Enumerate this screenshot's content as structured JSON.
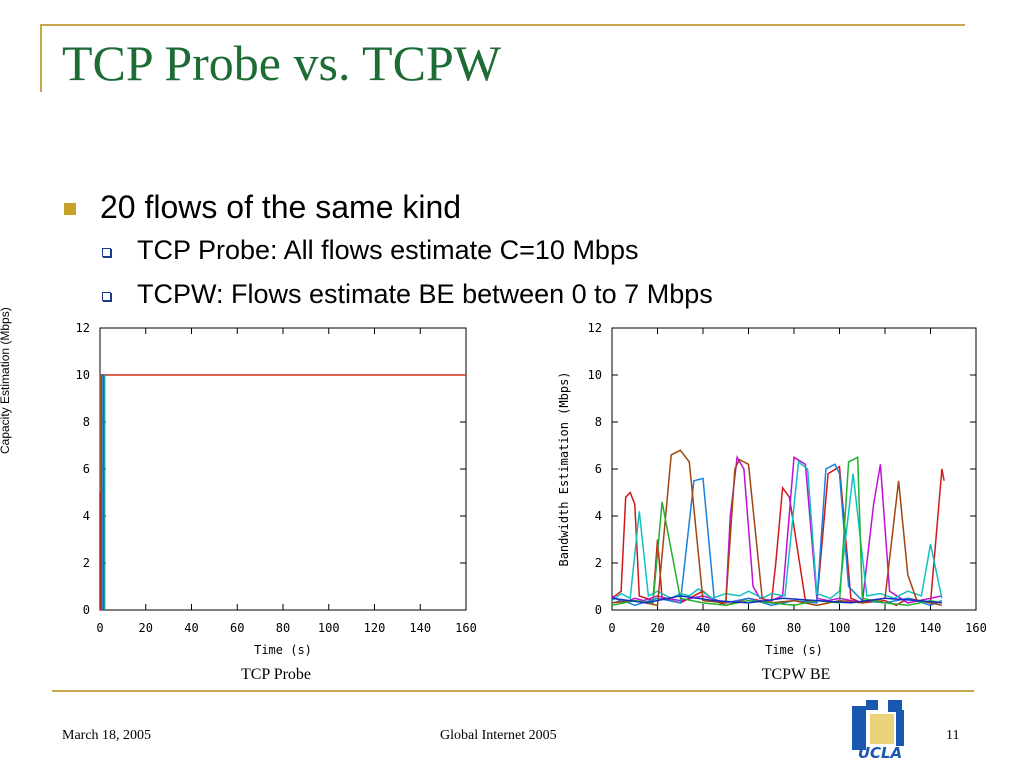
{
  "slide": {
    "title": "TCP Probe vs. TCPW",
    "bullet_main": "20 flows of the same kind",
    "sub_bullets": [
      "TCP Probe: All flows estimate C=10 Mbps",
      "TCPW: Flows estimate BE between 0 to 7 Mbps"
    ],
    "footer_date": "March 18, 2005",
    "footer_center": "Global Internet 2005",
    "page_number": "11",
    "logo_text": "UCLA",
    "colors": {
      "title": "#1d6b35",
      "rule": "#c8a54a",
      "bullet": "#c6a228"
    }
  },
  "chart_data": [
    {
      "type": "line",
      "caption": "TCP Probe",
      "xlabel": "Time (s)",
      "ylabel": "Capacity Estimation (Mbps)",
      "xlim": [
        0,
        160
      ],
      "ylim": [
        0,
        12
      ],
      "xticks": [
        0,
        20,
        40,
        60,
        80,
        100,
        120,
        140,
        160
      ],
      "yticks": [
        0,
        2,
        4,
        6,
        8,
        10,
        12
      ],
      "grid": false,
      "legend": "none",
      "series": [
        {
          "color": "#d03010",
          "x": [
            0,
            0.4,
            0.4,
            160
          ],
          "y": [
            0,
            0,
            10,
            10
          ]
        },
        {
          "color": "#1070d0",
          "x": [
            0.9,
            0.9,
            1.3
          ],
          "y": [
            0,
            10,
            10
          ]
        },
        {
          "color": "#c010c0",
          "x": [
            1.6,
            1.6,
            2.0
          ],
          "y": [
            0,
            10,
            10
          ]
        },
        {
          "color": "#10a0a0",
          "x": [
            2.0,
            2.0
          ],
          "y": [
            0,
            10
          ]
        },
        {
          "color": "#a05010",
          "x": [
            0.2,
            0.2
          ],
          "y": [
            5,
            10
          ]
        }
      ]
    },
    {
      "type": "line",
      "caption": "TCPW BE",
      "xlabel": "Time (s)",
      "ylabel": "Bandwidth Estimation (Mbps)",
      "xlim": [
        0,
        160
      ],
      "ylim": [
        0,
        12
      ],
      "xticks": [
        0,
        20,
        40,
        60,
        80,
        100,
        120,
        140,
        160
      ],
      "yticks": [
        0,
        2,
        4,
        6,
        8,
        10,
        12
      ],
      "grid": false,
      "legend": "none",
      "series": [
        {
          "color": "#d01818",
          "x": [
            0,
            4,
            6,
            8,
            10,
            12,
            18,
            20,
            22,
            30,
            40,
            45,
            50,
            60,
            70,
            72,
            75,
            78,
            85,
            90,
            95,
            100,
            105,
            110,
            120,
            125,
            130,
            140,
            145,
            146
          ],
          "y": [
            0.5,
            0.8,
            4.8,
            5.0,
            4.5,
            0.6,
            0.4,
            3.0,
            0.5,
            0.3,
            0.8,
            0.4,
            0.2,
            0.5,
            0.3,
            2.0,
            5.2,
            4.8,
            0.4,
            0.3,
            5.8,
            6.1,
            0.5,
            0.3,
            0.4,
            0.2,
            0.5,
            0.3,
            6.0,
            5.5
          ]
        },
        {
          "color": "#c010d8",
          "x": [
            0,
            5,
            10,
            14,
            20,
            24,
            30,
            40,
            50,
            52,
            55,
            58,
            62,
            65,
            70,
            75,
            80,
            85,
            90,
            95,
            100,
            110,
            115,
            118,
            122,
            130,
            140,
            145
          ],
          "y": [
            0.6,
            0.3,
            0.5,
            0.4,
            0.6,
            0.5,
            0.4,
            0.6,
            0.3,
            4.0,
            6.5,
            6.0,
            1.0,
            0.5,
            0.4,
            0.6,
            6.5,
            6.2,
            0.5,
            0.4,
            0.5,
            0.3,
            4.5,
            6.2,
            0.8,
            0.3,
            0.5,
            0.6
          ]
        },
        {
          "color": "#1880e0",
          "x": [
            0,
            5,
            10,
            20,
            30,
            36,
            40,
            45,
            50,
            60,
            70,
            80,
            90,
            94,
            98,
            100,
            104,
            110,
            120,
            130,
            140,
            145
          ],
          "y": [
            0.3,
            0.4,
            0.2,
            0.5,
            0.3,
            5.5,
            5.6,
            0.4,
            0.3,
            0.5,
            0.2,
            0.4,
            0.3,
            6.0,
            6.2,
            5.8,
            1.0,
            0.4,
            0.3,
            0.5,
            0.2,
            0.4
          ]
        },
        {
          "color": "#10c0c0",
          "x": [
            0,
            4,
            8,
            12,
            16,
            20,
            26,
            30,
            34,
            38,
            44,
            50,
            56,
            60,
            66,
            70,
            76,
            82,
            86,
            90,
            96,
            100,
            106,
            112,
            118,
            124,
            130,
            136,
            140,
            145
          ],
          "y": [
            0.4,
            0.7,
            0.5,
            4.2,
            0.6,
            0.8,
            0.5,
            0.7,
            0.6,
            0.9,
            0.5,
            0.7,
            0.6,
            0.8,
            0.5,
            0.7,
            0.6,
            6.3,
            6.0,
            0.7,
            0.5,
            0.8,
            5.8,
            0.6,
            0.7,
            0.5,
            0.8,
            0.6,
            2.8,
            0.5
          ]
        },
        {
          "color": "#a04410",
          "x": [
            0,
            10,
            20,
            26,
            30,
            34,
            40,
            50,
            54,
            56,
            60,
            66,
            70,
            80,
            90,
            100,
            110,
            120,
            126,
            130,
            134,
            140,
            145
          ],
          "y": [
            0.3,
            0.4,
            0.2,
            6.6,
            6.8,
            6.3,
            0.4,
            0.3,
            6.0,
            6.4,
            6.2,
            0.5,
            0.3,
            0.4,
            0.2,
            0.4,
            0.3,
            0.5,
            5.5,
            1.5,
            0.4,
            0.3,
            0.2
          ]
        },
        {
          "color": "#20b030",
          "x": [
            0,
            10,
            18,
            22,
            30,
            40,
            50,
            60,
            70,
            80,
            90,
            100,
            104,
            108,
            110,
            120,
            130,
            140,
            145
          ],
          "y": [
            0.2,
            0.4,
            0.3,
            4.6,
            0.5,
            0.3,
            0.2,
            0.4,
            0.3,
            0.2,
            0.4,
            0.3,
            6.3,
            6.5,
            0.5,
            0.3,
            0.2,
            0.4,
            0.3
          ]
        },
        {
          "color": "#1030c0",
          "x": [
            0,
            15,
            30,
            45,
            60,
            75,
            90,
            105,
            120,
            135,
            145
          ],
          "y": [
            0.5,
            0.3,
            0.6,
            0.4,
            0.3,
            0.5,
            0.4,
            0.3,
            0.5,
            0.4,
            0.3
          ]
        }
      ]
    }
  ]
}
